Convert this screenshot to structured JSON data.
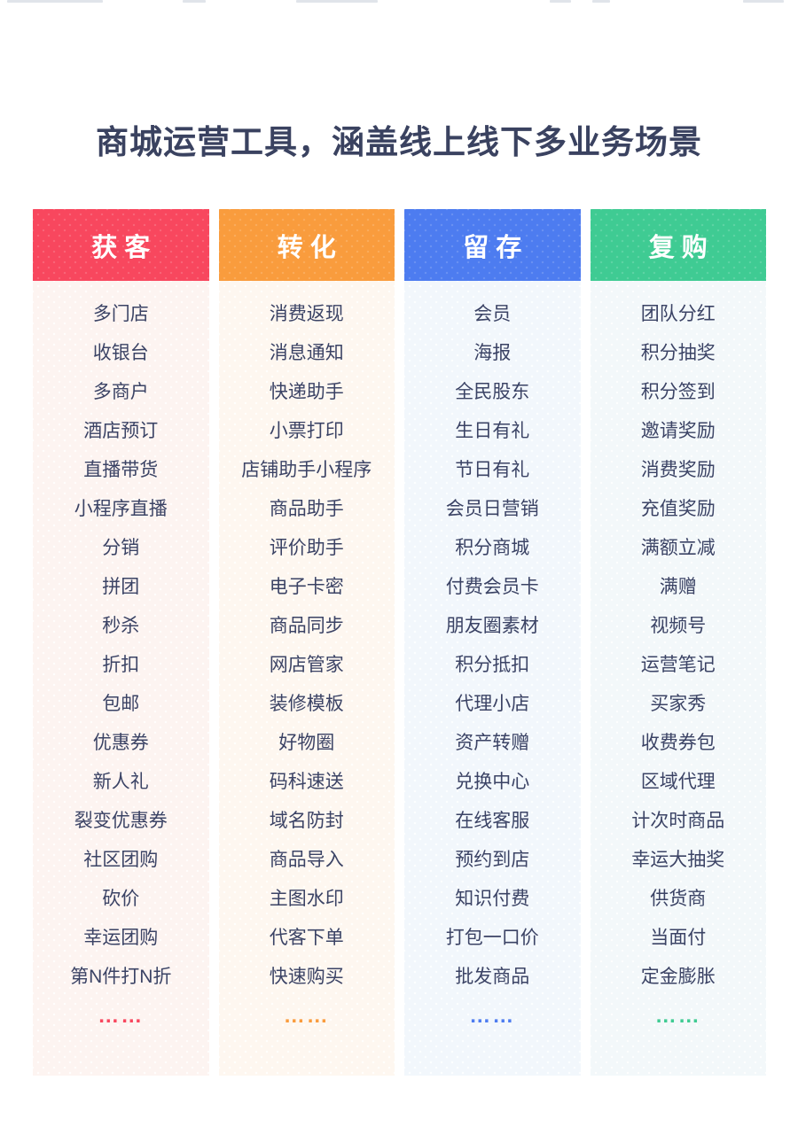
{
  "header": {
    "title": "商城运营工具，涵盖线上线下多业务场景"
  },
  "columns": [
    {
      "label": "获客",
      "accent": "#F8475E",
      "body_bg": "#FDF4F1",
      "ellipsis": "……",
      "items": [
        "多门店",
        "收银台",
        "多商户",
        "酒店预订",
        "直播带货",
        "小程序直播",
        "分销",
        "拼团",
        "秒杀",
        "折扣",
        "包邮",
        "优惠券",
        "新人礼",
        "裂变优惠券",
        "社区团购",
        "砍价",
        "幸运团购",
        "第N件打N折"
      ]
    },
    {
      "label": "转化",
      "accent": "#F99C3D",
      "body_bg": "#FEF7F0",
      "ellipsis": "……",
      "items": [
        "消费返现",
        "消息通知",
        "快递助手",
        "小票打印",
        "店铺助手小程序",
        "商品助手",
        "评价助手",
        "电子卡密",
        "商品同步",
        "网店管家",
        "装修模板",
        "好物圈",
        "码科速送",
        "域名防封",
        "商品导入",
        "主图水印",
        "代客下单",
        "快速购买"
      ]
    },
    {
      "label": "留存",
      "accent": "#4D7CF0",
      "body_bg": "#F2F7FC",
      "ellipsis": "……",
      "items": [
        "会员",
        "海报",
        "全民股东",
        "生日有礼",
        "节日有礼",
        "会员日营销",
        "积分商城",
        "付费会员卡",
        "朋友圈素材",
        "积分抵扣",
        "代理小店",
        "资产转赠",
        "兑换中心",
        "在线客服",
        "预约到店",
        "知识付费",
        "打包一口价",
        "批发商品"
      ]
    },
    {
      "label": "复购",
      "accent": "#3FCB93",
      "body_bg": "#F3F8FA",
      "ellipsis": "……",
      "items": [
        "团队分红",
        "积分抽奖",
        "积分签到",
        "邀请奖励",
        "消费奖励",
        "充值奖励",
        "满额立减",
        "满赠",
        "视频号",
        "运营笔记",
        "买家秀",
        "收费券包",
        "区域代理",
        "计次时商品",
        "幸运大抽奖",
        "供货商",
        "当面付",
        "定金膨胀"
      ]
    }
  ]
}
